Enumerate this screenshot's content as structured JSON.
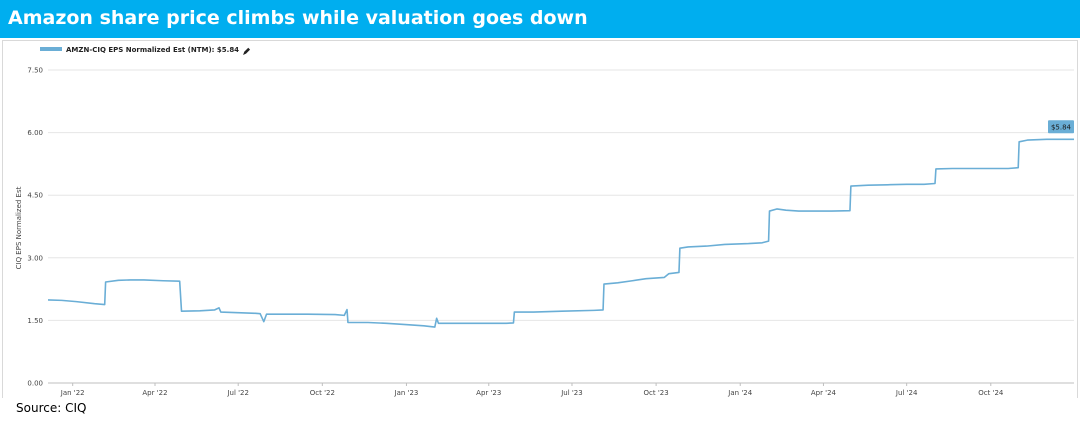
{
  "header": {
    "title": "Amazon share price climbs while valuation goes down"
  },
  "footer": {
    "source": "Source:   CIQ"
  },
  "colors": {
    "banner": "#00aeef",
    "series": "#6aaed6",
    "end_label_bg": "#6aaed6"
  },
  "icons": {
    "legend_edit": "pencil-icon"
  },
  "chart_data": {
    "type": "line",
    "title": "",
    "xlabel": "",
    "ylabel": "CIQ EPS Normalized Est",
    "ylim": [
      0,
      7.5
    ],
    "yticks": [
      "0.00",
      "1.50",
      "3.00",
      "4.50",
      "6.00",
      "7.50"
    ],
    "xticks": [
      {
        "date": "2022-01-01",
        "label": "Jan '22"
      },
      {
        "date": "2022-04-01",
        "label": "Apr '22"
      },
      {
        "date": "2022-07-01",
        "label": "Jul '22"
      },
      {
        "date": "2022-10-01",
        "label": "Oct '22"
      },
      {
        "date": "2023-01-01",
        "label": "Jan '23"
      },
      {
        "date": "2023-04-01",
        "label": "Apr '23"
      },
      {
        "date": "2023-07-01",
        "label": "Jul '23"
      },
      {
        "date": "2023-10-01",
        "label": "Oct '23"
      },
      {
        "date": "2024-01-01",
        "label": "Jan '24"
      },
      {
        "date": "2024-04-01",
        "label": "Apr '24"
      },
      {
        "date": "2024-07-01",
        "label": "Jul '24"
      },
      {
        "date": "2024-10-01",
        "label": "Oct '24"
      }
    ],
    "xlim": [
      "2021-12-05",
      "2024-12-31"
    ],
    "grid": true,
    "legend_position": "top-left",
    "end_label": "$5.84",
    "series": [
      {
        "name": "AMZN-CIQ EPS Normalized Est (NTM): $5.84",
        "points": [
          [
            "2021-12-05",
            1.99
          ],
          [
            "2021-12-20",
            1.98
          ],
          [
            "2022-01-05",
            1.95
          ],
          [
            "2022-01-25",
            1.9
          ],
          [
            "2022-02-05",
            1.88
          ],
          [
            "2022-02-06",
            2.42
          ],
          [
            "2022-02-20",
            2.46
          ],
          [
            "2022-03-05",
            2.47
          ],
          [
            "2022-03-20",
            2.47
          ],
          [
            "2022-04-10",
            2.45
          ],
          [
            "2022-04-28",
            2.44
          ],
          [
            "2022-04-30",
            1.72
          ],
          [
            "2022-05-20",
            1.73
          ],
          [
            "2022-06-05",
            1.75
          ],
          [
            "2022-06-10",
            1.8
          ],
          [
            "2022-06-12",
            1.7
          ],
          [
            "2022-07-20",
            1.67
          ],
          [
            "2022-07-25",
            1.66
          ],
          [
            "2022-07-29",
            1.47
          ],
          [
            "2022-08-01",
            1.65
          ],
          [
            "2022-09-15",
            1.65
          ],
          [
            "2022-10-15",
            1.64
          ],
          [
            "2022-10-25",
            1.62
          ],
          [
            "2022-10-28",
            1.76
          ],
          [
            "2022-10-29",
            1.45
          ],
          [
            "2022-11-20",
            1.45
          ],
          [
            "2022-12-10",
            1.43
          ],
          [
            "2022-12-31",
            1.4
          ],
          [
            "2023-01-20",
            1.37
          ],
          [
            "2023-02-01",
            1.34
          ],
          [
            "2023-02-03",
            1.55
          ],
          [
            "2023-02-05",
            1.43
          ],
          [
            "2023-03-10",
            1.43
          ],
          [
            "2023-04-20",
            1.43
          ],
          [
            "2023-04-28",
            1.44
          ],
          [
            "2023-04-29",
            1.7
          ],
          [
            "2023-05-20",
            1.7
          ],
          [
            "2023-06-20",
            1.72
          ],
          [
            "2023-07-25",
            1.74
          ],
          [
            "2023-08-04",
            1.75
          ],
          [
            "2023-08-05",
            2.37
          ],
          [
            "2023-08-20",
            2.4
          ],
          [
            "2023-09-05",
            2.45
          ],
          [
            "2023-09-20",
            2.5
          ],
          [
            "2023-10-10",
            2.53
          ],
          [
            "2023-10-15",
            2.62
          ],
          [
            "2023-10-26",
            2.65
          ],
          [
            "2023-10-27",
            3.23
          ],
          [
            "2023-11-05",
            3.26
          ],
          [
            "2023-11-25",
            3.28
          ],
          [
            "2023-12-15",
            3.32
          ],
          [
            "2024-01-10",
            3.34
          ],
          [
            "2024-01-25",
            3.36
          ],
          [
            "2024-02-01",
            3.4
          ],
          [
            "2024-02-02",
            4.12
          ],
          [
            "2024-02-10",
            4.17
          ],
          [
            "2024-02-20",
            4.14
          ],
          [
            "2024-03-05",
            4.12
          ],
          [
            "2024-04-10",
            4.12
          ],
          [
            "2024-04-30",
            4.13
          ],
          [
            "2024-05-01",
            4.72
          ],
          [
            "2024-05-20",
            4.74
          ],
          [
            "2024-06-10",
            4.75
          ],
          [
            "2024-07-01",
            4.76
          ],
          [
            "2024-07-20",
            4.76
          ],
          [
            "2024-08-01",
            4.78
          ],
          [
            "2024-08-02",
            5.13
          ],
          [
            "2024-08-20",
            5.14
          ],
          [
            "2024-09-20",
            5.14
          ],
          [
            "2024-10-20",
            5.14
          ],
          [
            "2024-10-31",
            5.16
          ],
          [
            "2024-11-01",
            5.78
          ],
          [
            "2024-11-10",
            5.82
          ],
          [
            "2024-12-01",
            5.84
          ],
          [
            "2024-12-31",
            5.84
          ]
        ]
      }
    ]
  }
}
